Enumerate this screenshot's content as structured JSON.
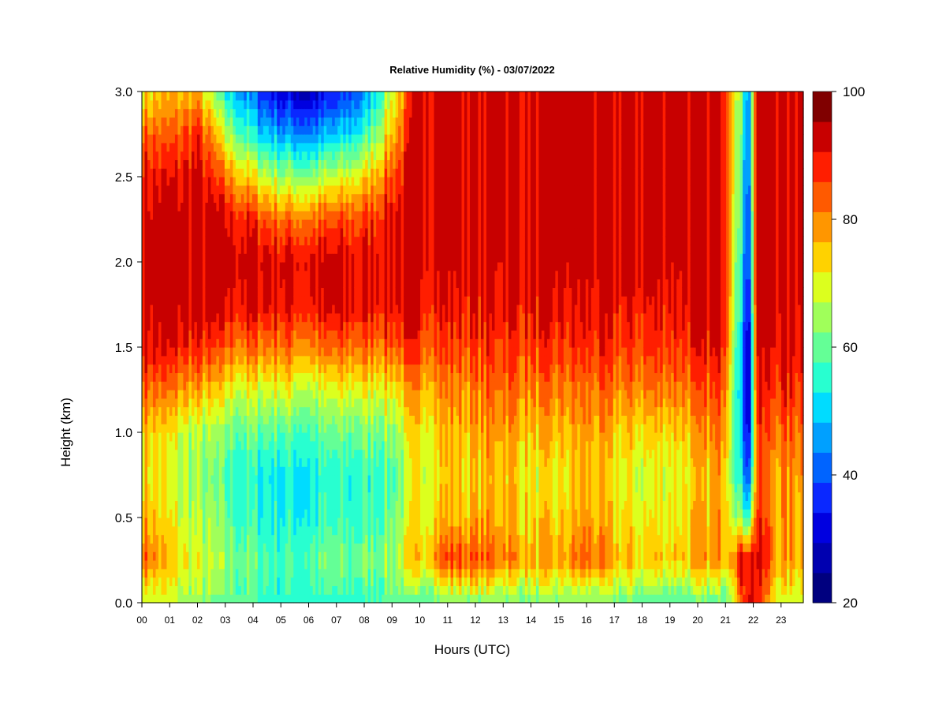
{
  "chart_data": {
    "type": "heatmap",
    "title": "Relative Humidity (%) - 03/07/2022",
    "xlabel": "Hours (UTC)",
    "ylabel": "Height (km)",
    "x_ticks": [
      "00",
      "01",
      "02",
      "03",
      "04",
      "05",
      "06",
      "07",
      "08",
      "09",
      "10",
      "11",
      "12",
      "13",
      "14",
      "15",
      "16",
      "17",
      "18",
      "19",
      "20",
      "21",
      "22",
      "23"
    ],
    "x_range_hours": [
      0,
      23.8
    ],
    "y_ticks": [
      "0.0",
      "0.5",
      "1.0",
      "1.5",
      "2.0",
      "2.5",
      "3.0"
    ],
    "y_range_km": [
      0,
      3
    ],
    "colorbar": {
      "range": [
        20,
        100
      ],
      "ticks": [
        "20",
        "40",
        "60",
        "80",
        "100"
      ],
      "levels": [
        20,
        25,
        30,
        35,
        40,
        45,
        50,
        55,
        60,
        65,
        70,
        75,
        80,
        85,
        90,
        95,
        100
      ],
      "colors": [
        "#00007f",
        "#0000b0",
        "#0000e0",
        "#0a28ff",
        "#0064ff",
        "#00a0ff",
        "#00dcff",
        "#28ffd0",
        "#64ff96",
        "#a0ff5a",
        "#dcff1e",
        "#ffd200",
        "#ff9600",
        "#ff5a00",
        "#ff1e00",
        "#c80000",
        "#800000"
      ]
    },
    "humidity_profiles": [
      {
        "hour": 0.0,
        "h": [
          0,
          0.25,
          0.5,
          0.75,
          1,
          1.25,
          1.5,
          1.75,
          2,
          2.25,
          2.5,
          2.75,
          3
        ],
        "rh": [
          70,
          88,
          82,
          78,
          80,
          88,
          97,
          98,
          98,
          98,
          95,
          88,
          76
        ]
      },
      {
        "hour": 1.0,
        "h": [
          0,
          0.25,
          0.5,
          0.75,
          1,
          1.25,
          1.5,
          1.75,
          2,
          2.25,
          2.5,
          2.75,
          3
        ],
        "rh": [
          70,
          78,
          74,
          72,
          74,
          84,
          94,
          98,
          98,
          98,
          93,
          86,
          78
        ]
      },
      {
        "hour": 2.0,
        "h": [
          0,
          0.25,
          0.5,
          0.75,
          1,
          1.25,
          1.5,
          1.75,
          2,
          2.25,
          2.5,
          2.75,
          3
        ],
        "rh": [
          66,
          72,
          68,
          66,
          68,
          80,
          92,
          98,
          98,
          98,
          96,
          92,
          80
        ]
      },
      {
        "hour": 3.0,
        "h": [
          0,
          0.25,
          0.5,
          0.75,
          1,
          1.25,
          1.5,
          1.75,
          2,
          2.25,
          2.5,
          2.75,
          3
        ],
        "rh": [
          62,
          66,
          62,
          60,
          64,
          74,
          86,
          96,
          98,
          96,
          85,
          70,
          55
        ]
      },
      {
        "hour": 4.0,
        "h": [
          0,
          0.25,
          0.5,
          0.75,
          1,
          1.25,
          1.5,
          1.75,
          2,
          2.25,
          2.5,
          2.75,
          3
        ],
        "rh": [
          60,
          62,
          58,
          56,
          62,
          72,
          86,
          96,
          98,
          92,
          75,
          55,
          42
        ]
      },
      {
        "hour": 5.0,
        "h": [
          0,
          0.25,
          0.5,
          0.75,
          1,
          1.25,
          1.5,
          1.75,
          2,
          2.25,
          2.5,
          2.75,
          3
        ],
        "rh": [
          58,
          60,
          56,
          55,
          62,
          74,
          86,
          96,
          97,
          86,
          68,
          48,
          32
        ]
      },
      {
        "hour": 6.0,
        "h": [
          0,
          0.25,
          0.5,
          0.75,
          1,
          1.25,
          1.5,
          1.75,
          2,
          2.25,
          2.5,
          2.75,
          3
        ],
        "rh": [
          58,
          62,
          56,
          55,
          60,
          70,
          84,
          94,
          96,
          86,
          66,
          46,
          28
        ]
      },
      {
        "hour": 7.0,
        "h": [
          0,
          0.25,
          0.5,
          0.75,
          1,
          1.25,
          1.5,
          1.75,
          2,
          2.25,
          2.5,
          2.75,
          3
        ],
        "rh": [
          58,
          62,
          58,
          56,
          62,
          72,
          86,
          96,
          96,
          88,
          70,
          50,
          34
        ]
      },
      {
        "hour": 8.0,
        "h": [
          0,
          0.25,
          0.5,
          0.75,
          1,
          1.25,
          1.5,
          1.75,
          2,
          2.25,
          2.5,
          2.75,
          3
        ],
        "rh": [
          58,
          64,
          58,
          58,
          64,
          74,
          86,
          96,
          96,
          90,
          76,
          58,
          44
        ]
      },
      {
        "hour": 9.0,
        "h": [
          0,
          0.25,
          0.5,
          0.75,
          1,
          1.25,
          1.5,
          1.75,
          2,
          2.25,
          2.5,
          2.75,
          3
        ],
        "rh": [
          62,
          68,
          64,
          62,
          66,
          76,
          88,
          96,
          97,
          96,
          90,
          80,
          72
        ]
      },
      {
        "hour": 10.0,
        "h": [
          0,
          0.25,
          0.5,
          0.75,
          1,
          1.25,
          1.5,
          1.75,
          2,
          2.25,
          2.5,
          2.75,
          3
        ],
        "rh": [
          62,
          78,
          76,
          74,
          76,
          82,
          90,
          96,
          98,
          98,
          98,
          98,
          98
        ]
      },
      {
        "hour": 11.0,
        "h": [
          0,
          0.25,
          0.5,
          0.75,
          1,
          1.25,
          1.5,
          1.75,
          2,
          2.25,
          2.5,
          2.75,
          3
        ],
        "rh": [
          64,
          90,
          80,
          78,
          80,
          84,
          90,
          95,
          98,
          98,
          98,
          98,
          98
        ]
      },
      {
        "hour": 12.0,
        "h": [
          0,
          0.25,
          0.5,
          0.75,
          1,
          1.25,
          1.5,
          1.75,
          2,
          2.25,
          2.5,
          2.75,
          3
        ],
        "rh": [
          64,
          88,
          80,
          78,
          80,
          84,
          90,
          94,
          98,
          98,
          98,
          98,
          98
        ]
      },
      {
        "hour": 13.0,
        "h": [
          0,
          0.25,
          0.5,
          0.75,
          1,
          1.25,
          1.5,
          1.75,
          2,
          2.25,
          2.5,
          2.75,
          3
        ],
        "rh": [
          64,
          86,
          82,
          80,
          84,
          88,
          92,
          96,
          98,
          98,
          98,
          98,
          98
        ]
      },
      {
        "hour": 14.0,
        "h": [
          0,
          0.25,
          0.5,
          0.75,
          1,
          1.25,
          1.5,
          1.75,
          2,
          2.25,
          2.5,
          2.75,
          3
        ],
        "rh": [
          64,
          80,
          76,
          74,
          78,
          84,
          90,
          94,
          98,
          98,
          98,
          98,
          98
        ]
      },
      {
        "hour": 15.0,
        "h": [
          0,
          0.25,
          0.5,
          0.75,
          1,
          1.25,
          1.5,
          1.75,
          2,
          2.25,
          2.5,
          2.75,
          3
        ],
        "rh": [
          64,
          80,
          76,
          74,
          78,
          84,
          90,
          94,
          98,
          98,
          98,
          98,
          98
        ]
      },
      {
        "hour": 16.0,
        "h": [
          0,
          0.25,
          0.5,
          0.75,
          1,
          1.25,
          1.5,
          1.75,
          2,
          2.25,
          2.5,
          2.75,
          3
        ],
        "rh": [
          64,
          88,
          82,
          80,
          82,
          86,
          92,
          95,
          98,
          98,
          98,
          98,
          98
        ]
      },
      {
        "hour": 17.0,
        "h": [
          0,
          0.25,
          0.5,
          0.75,
          1,
          1.25,
          1.5,
          1.75,
          2,
          2.25,
          2.5,
          2.75,
          3
        ],
        "rh": [
          64,
          80,
          76,
          74,
          78,
          84,
          90,
          94,
          98,
          98,
          98,
          98,
          98
        ]
      },
      {
        "hour": 18.0,
        "h": [
          0,
          0.25,
          0.5,
          0.75,
          1,
          1.25,
          1.5,
          1.75,
          2,
          2.25,
          2.5,
          2.75,
          3
        ],
        "rh": [
          62,
          78,
          74,
          72,
          76,
          84,
          90,
          94,
          98,
          98,
          98,
          98,
          98
        ]
      },
      {
        "hour": 19.0,
        "h": [
          0,
          0.25,
          0.5,
          0.75,
          1,
          1.25,
          1.5,
          1.75,
          2,
          2.25,
          2.5,
          2.75,
          3
        ],
        "rh": [
          62,
          78,
          76,
          74,
          78,
          86,
          92,
          95,
          98,
          98,
          98,
          98,
          98
        ]
      },
      {
        "hour": 20.0,
        "h": [
          0,
          0.25,
          0.5,
          0.75,
          1,
          1.25,
          1.5,
          1.75,
          2,
          2.25,
          2.5,
          2.75,
          3
        ],
        "rh": [
          62,
          80,
          78,
          76,
          80,
          86,
          92,
          96,
          98,
          98,
          98,
          98,
          98
        ]
      },
      {
        "hour": 21.0,
        "h": [
          0,
          0.25,
          0.5,
          0.75,
          1,
          1.25,
          1.5,
          1.75,
          2,
          2.25,
          2.5,
          2.75,
          3
        ],
        "rh": [
          62,
          82,
          82,
          82,
          86,
          90,
          95,
          97,
          98,
          98,
          98,
          98,
          98
        ]
      },
      {
        "hour": 21.7,
        "h": [
          0,
          0.25,
          0.5,
          0.75,
          1,
          1.25,
          1.5,
          1.75,
          2,
          2.25,
          2.5,
          2.75,
          3
        ],
        "rh": [
          92,
          98,
          60,
          45,
          40,
          36,
          38,
          42,
          45,
          48,
          50,
          52,
          55
        ]
      },
      {
        "hour": 21.9,
        "h": [
          0,
          0.25,
          0.5,
          0.75,
          1,
          1.25,
          1.5,
          1.75,
          2,
          2.25,
          2.5,
          2.75,
          3
        ],
        "rh": [
          98,
          98,
          64,
          45,
          38,
          34,
          35,
          40,
          44,
          46,
          48,
          50,
          52
        ]
      },
      {
        "hour": 22.1,
        "h": [
          0,
          0.25,
          0.5,
          0.75,
          1,
          1.25,
          1.5,
          1.75,
          2,
          2.25,
          2.5,
          2.75,
          3
        ],
        "rh": [
          92,
          98,
          92,
          88,
          90,
          93,
          96,
          98,
          98,
          98,
          98,
          98,
          98
        ]
      },
      {
        "hour": 23.0,
        "h": [
          0,
          0.25,
          0.5,
          0.75,
          1,
          1.25,
          1.5,
          1.75,
          2,
          2.25,
          2.5,
          2.75,
          3
        ],
        "rh": [
          70,
          80,
          82,
          82,
          86,
          92,
          96,
          98,
          98,
          98,
          98,
          98,
          98
        ]
      },
      {
        "hour": 23.8,
        "h": [
          0,
          0.25,
          0.5,
          0.75,
          1,
          1.25,
          1.5,
          1.75,
          2,
          2.25,
          2.5,
          2.75,
          3
        ],
        "rh": [
          72,
          82,
          82,
          84,
          88,
          92,
          96,
          98,
          98,
          98,
          98,
          98,
          98
        ]
      }
    ]
  }
}
